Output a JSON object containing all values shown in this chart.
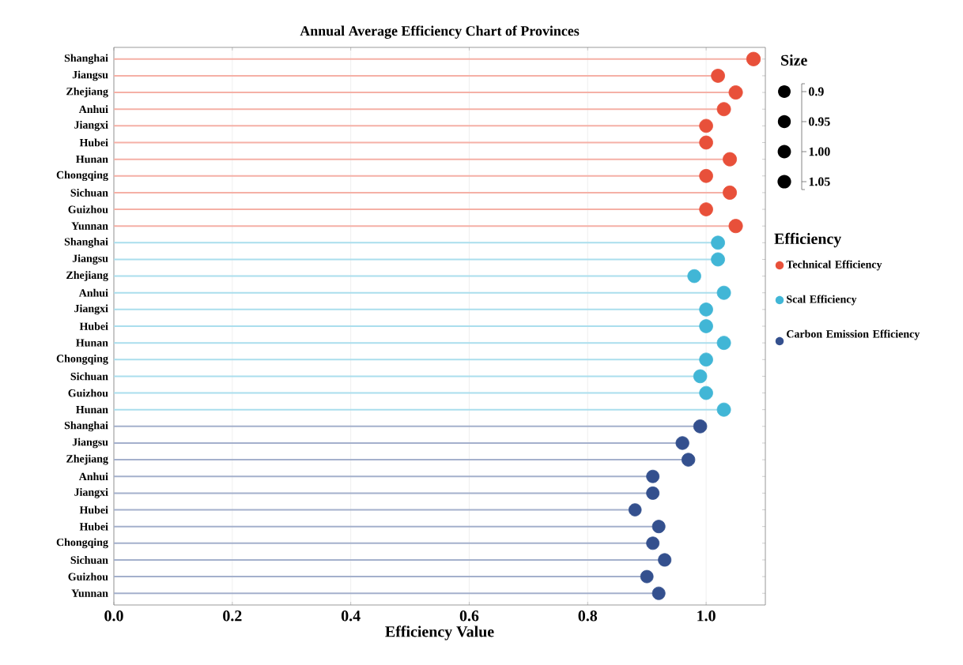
{
  "chart_data": {
    "type": "lollipop",
    "title": "Annual Average Efficiency  Chart of Provinces",
    "xlabel": "Efficiency  Value",
    "legend_title": "Efficiency",
    "annotations": [
      "Size"
    ],
    "categories": [
      "Shanghai",
      "Jiangsu",
      "Zhejiang",
      "Anhui",
      "Jiangxi",
      "Hubei",
      "Hunan",
      "Chongqing",
      "Sichuan",
      "Guizhou",
      "Yunnan",
      "Shanghai",
      "Jiangsu",
      "Zhejiang",
      "Anhui",
      "Jiangxi",
      "Hubei",
      "Hunan",
      "Chongqing",
      "Sichuan",
      "Guizhou",
      "Hunan",
      "Shanghai",
      "Jiangsu",
      "Zhejiang",
      "Anhui",
      "Jiangxi",
      "Hubei",
      "Hubei",
      "Chongqing",
      "Sichuan",
      "Guizhou",
      "Yunnan"
    ],
    "series": [
      {
        "name": "Technical Efficiency",
        "color": "#e8503a",
        "values": [
          1.08,
          1.02,
          1.05,
          1.03,
          1.0,
          1.0,
          1.04,
          1.0,
          1.04,
          1.0,
          1.05,
          null,
          null,
          null,
          null,
          null,
          null,
          null,
          null,
          null,
          null,
          null,
          null,
          null,
          null,
          null,
          null,
          null,
          null,
          null,
          null,
          null,
          null
        ],
        "sizes": [
          1.08,
          1.02,
          1.05,
          1.03,
          1.0,
          1.0,
          1.04,
          1.0,
          1.04,
          1.0,
          1.05,
          null,
          null,
          null,
          null,
          null,
          null,
          null,
          null,
          null,
          null,
          null,
          null,
          null,
          null,
          null,
          null,
          null,
          null,
          null,
          null,
          null,
          null
        ]
      },
      {
        "name": "Scal Efficiency",
        "color": "#41b6d6",
        "values": [
          null,
          null,
          null,
          null,
          null,
          null,
          null,
          null,
          null,
          null,
          null,
          1.02,
          1.02,
          0.98,
          1.03,
          1.0,
          1.0,
          1.03,
          1.0,
          0.99,
          1.0,
          1.03,
          null,
          null,
          null,
          null,
          null,
          null,
          null,
          null,
          null,
          null,
          null
        ],
        "sizes": [
          null,
          null,
          null,
          null,
          null,
          null,
          null,
          null,
          null,
          null,
          null,
          1.02,
          1.02,
          0.98,
          1.03,
          1.0,
          1.0,
          1.03,
          1.0,
          0.99,
          1.0,
          1.03,
          null,
          null,
          null,
          null,
          null,
          null,
          null,
          null,
          null,
          null,
          null
        ]
      },
      {
        "name": "Carbon Emission Efficiency",
        "color": "#34508e",
        "values": [
          null,
          null,
          null,
          null,
          null,
          null,
          null,
          null,
          null,
          null,
          null,
          null,
          null,
          null,
          null,
          null,
          null,
          null,
          null,
          null,
          null,
          null,
          0.99,
          0.96,
          0.97,
          0.91,
          0.91,
          0.88,
          0.92,
          0.91,
          0.93,
          0.9,
          0.92
        ],
        "sizes": [
          null,
          null,
          null,
          null,
          null,
          null,
          null,
          null,
          null,
          null,
          null,
          null,
          null,
          null,
          null,
          null,
          null,
          null,
          null,
          null,
          null,
          null,
          0.99,
          0.96,
          0.97,
          0.91,
          0.91,
          0.88,
          0.92,
          0.91,
          0.93,
          0.9,
          0.92
        ]
      }
    ],
    "size_legend": [
      {
        "value": 0.9,
        "label": "0.9"
      },
      {
        "value": 0.95,
        "label": "0.95"
      },
      {
        "value": 1.0,
        "label": "1.00"
      },
      {
        "value": 1.05,
        "label": "1.05"
      }
    ],
    "orientation": "horizontal",
    "xlim": [
      0,
      1.1
    ],
    "xticks": [
      {
        "value": 0,
        "label": "0.0"
      },
      {
        "value": 0.2,
        "label": "0.2"
      },
      {
        "value": 0.4,
        "label": "0.4"
      },
      {
        "value": 0.6,
        "label": "0.6"
      },
      {
        "value": 0.8,
        "label": "0.8"
      },
      {
        "value": 1.0,
        "label": "1.0"
      }
    ],
    "grid": "x",
    "legend": "right",
    "marker": "circle"
  }
}
